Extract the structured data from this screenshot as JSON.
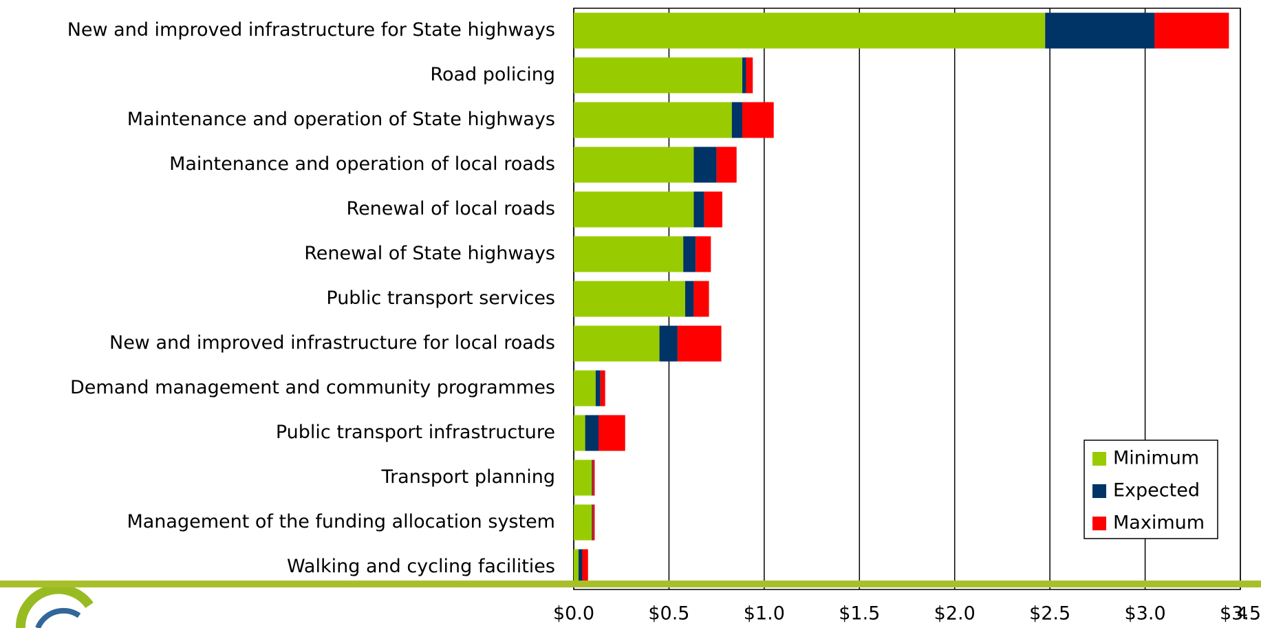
{
  "chart_data": {
    "type": "stacked-bar-horizontal",
    "categories": [
      "New and improved infrastructure for State highways",
      "Road policing",
      "Maintenance and operation of State highways",
      "Maintenance and operation of local roads",
      "Renewal of local roads",
      "Renewal of State highways",
      "Public transport services",
      "New and improved infrastructure for local roads",
      "Demand management and community programmes",
      "Public transport infrastructure",
      "Transport planning",
      "Management of the funding allocation system",
      "Walking and cycling facilities"
    ],
    "series": [
      {
        "name": "Minimum",
        "color": "#99cc00",
        "values": [
          2.475,
          0.885,
          0.83,
          0.63,
          0.63,
          0.575,
          0.585,
          0.45,
          0.115,
          0.06,
          0.095,
          0.095,
          0.025
        ]
      },
      {
        "name": "Expected",
        "color": "#003366",
        "values": [
          0.575,
          0.02,
          0.055,
          0.12,
          0.055,
          0.065,
          0.045,
          0.095,
          0.025,
          0.07,
          0.005,
          0.005,
          0.02
        ]
      },
      {
        "name": "Maximum",
        "color": "#ff0000",
        "values": [
          0.39,
          0.035,
          0.165,
          0.105,
          0.095,
          0.08,
          0.08,
          0.23,
          0.025,
          0.14,
          0.01,
          0.01,
          0.03
        ]
      }
    ],
    "xlim": [
      0,
      3.5
    ],
    "xticks": [
      {
        "value": 0,
        "label": "$0.0"
      },
      {
        "value": 0.5,
        "label": "$0.5"
      },
      {
        "value": 1,
        "label": "$1.0"
      },
      {
        "value": 1.5,
        "label": "$1.5"
      },
      {
        "value": 2,
        "label": "$2.0"
      },
      {
        "value": 2.5,
        "label": "$2.5"
      },
      {
        "value": 3,
        "label": "$3.0"
      },
      {
        "value": 3.5,
        "label": "$3.5"
      }
    ],
    "grid": true,
    "legend": "lower right"
  },
  "slide_number": "4"
}
